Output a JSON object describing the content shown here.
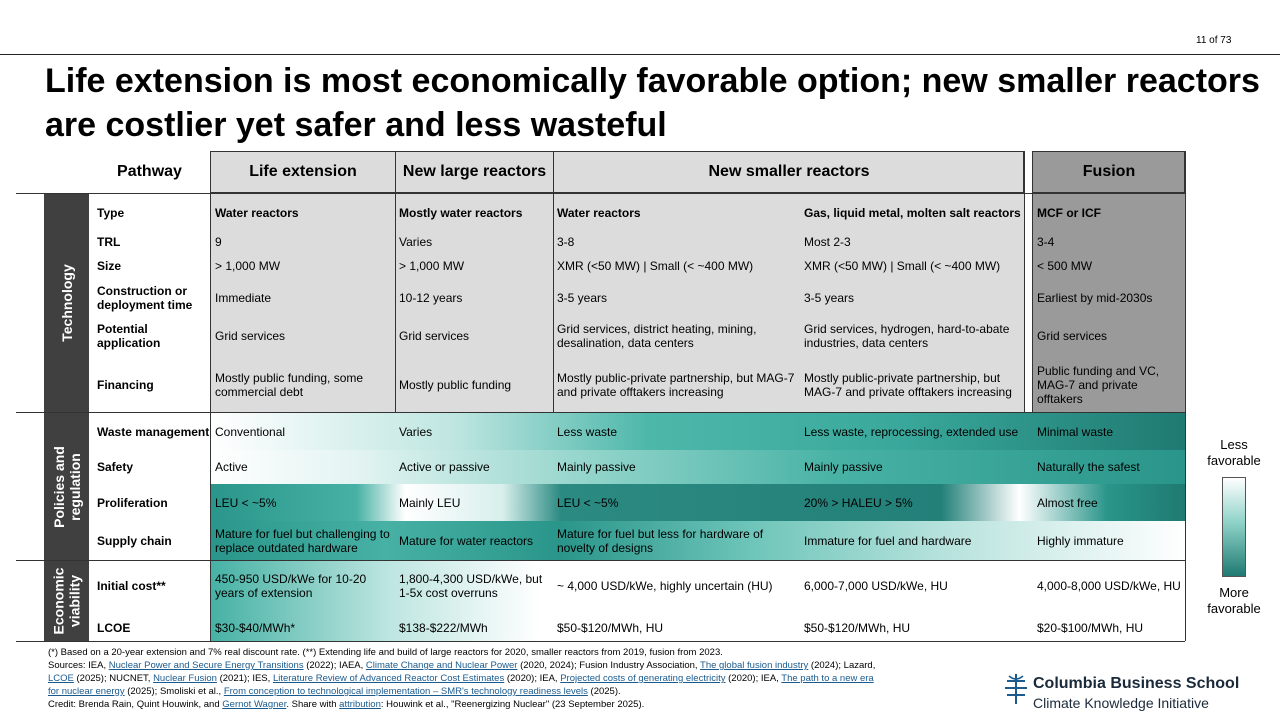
{
  "page_number": "11 of 73",
  "title": "Life extension is most economically favorable option; new smaller reactors are costlier yet safer and less wasteful",
  "headers": {
    "pathway": "Pathway",
    "life": "Life extension",
    "large": "New large reactors",
    "smaller": "New smaller reactors",
    "fusion": "Fusion"
  },
  "sections": {
    "technology": "Technology",
    "policies_line1": "Policies and",
    "policies_line2": "regulation",
    "economic_line1": "Economic",
    "economic_line2": "viability"
  },
  "rows": [
    {
      "label": "Type",
      "life": "Water reactors",
      "large": "Mostly water reactors",
      "sm1": "Water reactors",
      "sm2": "Gas, liquid  metal, molten salt reactors",
      "fusion": "MCF or ICF"
    },
    {
      "label": "TRL",
      "life": "9",
      "large": "Varies",
      "sm1": "3-8",
      "sm2": "Most 2-3",
      "fusion": "3-4"
    },
    {
      "label": "Size",
      "life": "> 1,000 MW",
      "large": "> 1,000 MW",
      "sm1": "XMR  (<50 MW) | Small (< ~400 MW)",
      "sm2": "XMR  (<50 MW) | Small (< ~400 MW)",
      "fusion": "< 500 MW"
    },
    {
      "label": "Construction or deployment time",
      "life": "Immediate",
      "large": "10-12 years",
      "sm1": "3-5 years",
      "sm2": "3-5 years",
      "fusion": "Earliest by mid-2030s"
    },
    {
      "label": "Potential application",
      "life": "Grid services",
      "large": "Grid services",
      "sm1": "Grid services, district heating, mining, desalination, data centers",
      "sm2": "Grid services, hydrogen, hard-to-abate industries, data centers",
      "fusion": "Grid services"
    },
    {
      "label": "Financing",
      "life": "Mostly public funding, some commercial debt",
      "large": "Mostly public funding",
      "sm1": "Mostly public-private partnership, but MAG-7  and private offtakers increasing",
      "sm2": "Mostly public-private partnership, but MAG-7  and private offtakers increasing",
      "fusion": "Public funding and VC, MAG-7  and private offtakers"
    },
    {
      "label": "Waste management",
      "life": "Conventional",
      "large": "Varies",
      "sm1": "Less waste",
      "sm2": "Less waste, reprocessing, extended use",
      "fusion": "Minimal waste"
    },
    {
      "label": "Safety",
      "life": "Active",
      "large": "Active  or passive",
      "sm1": "Mainly passive",
      "sm2": "Mainly passive",
      "fusion": "Naturally the safest"
    },
    {
      "label": "Proliferation",
      "life": "LEU < ~5%",
      "large": "Mainly LEU",
      "sm1": "LEU < ~5%",
      "sm2": "20% > HALEU > 5%",
      "fusion": "Almost free"
    },
    {
      "label": "Supply chain",
      "life": "Mature for fuel but challenging to replace outdated hardware",
      "large": "Mature for water reactors",
      "sm1": "Mature for fuel but less for hardware of novelty of designs",
      "sm2": "Immature for fuel and hardware",
      "fusion": "Highly immature"
    },
    {
      "label": "Initial cost**",
      "life": "450-950 USD/kWe for 10-20 years of extension",
      "large": "1,800-4,300 USD/kWe, but 1-5x cost overruns",
      "sm1": "~ 4,000 USD/kWe, highly uncertain (HU)",
      "sm2": "6,000-7,000 USD/kWe, HU",
      "fusion": "4,000-8,000 USD/kWe, HU"
    },
    {
      "label": "LCOE",
      "life": "$30-$40/MWh*",
      "large": "$138-$222/MWh",
      "sm1": "$50-$120/MWh, HU",
      "sm2": "$50-$120/MWh, HU",
      "fusion": "$20-$100/MWh, HU"
    }
  ],
  "legend": {
    "less": "Less favorable",
    "more": "More favorable",
    "colors": {
      "light": "#ffffff",
      "dark": "#1f7a72"
    }
  },
  "footnotes": {
    "note": "(*) Based on a 20-year extension and 7% real discount rate. (**) Extending life and build of large reactors for 2020, smaller reactors from 2019, fusion from 2023.",
    "s1": "Sources: IEA, ",
    "l1": "Nuclear Power and Secure Energy Transitions",
    "s2": " (2022); IAEA, ",
    "l2": "Climate  Change and Nuclear Power",
    "s3": " (2020, 2024); Fusion Industry Association, ",
    "l3": "The global  fusion industry",
    "s4": " (2024); Lazard,",
    "l4": "LCOE",
    "s5": " (2025); NUCNET, ",
    "l5": "Nuclear Fusion",
    "s6": " (2021); IES, ",
    "l6": "Literature Review of Advanced Reactor Cost Estimates",
    "s7": " (2020); IEA, ",
    "l7": "Projected costs of generating electricity",
    "s8": " (2020); IEA, ",
    "l8": "The path to a new era",
    "l9": "for nuclear energy",
    "s9": " (2025); Smoliski et al., ",
    "l10": "From conception to technological implementation  – SMR's technology readiness levels",
    "s10": " (2025).",
    "c1": "Credit: Brenda Rain, Quint Houwink, and ",
    "l11": "Gernot Wagner",
    "c2": ". Share with ",
    "l12": "attribution",
    "c3": ": Houwink et al., \"Reenergizing Nuclear\" (23 September 2025)."
  },
  "logo": {
    "line1": "Columbia Business School",
    "line2": "Climate Knowledge Initiative"
  }
}
